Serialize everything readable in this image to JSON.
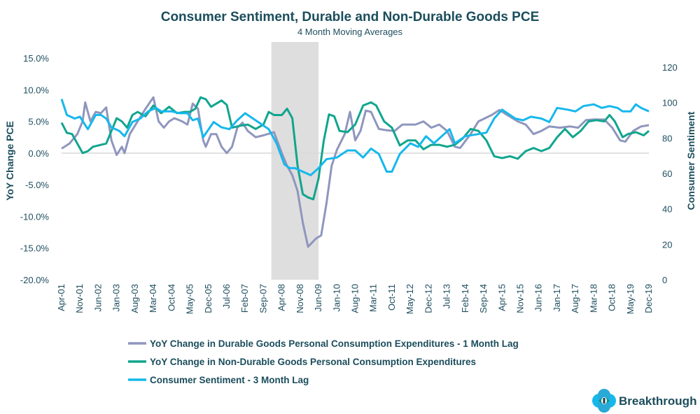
{
  "chart_data": {
    "type": "line",
    "title": "Consumer Sentiment, Durable and Non-Durable Goods PCE",
    "subtitle": "4 Month Moving Averages",
    "ylabel": "YoY Change PCE",
    "y2label": "Consumer Sentiment",
    "ylim": [
      -20,
      15
    ],
    "y2lim": [
      0,
      130
    ],
    "yticks": [
      "15.0%",
      "10.0%",
      "5.0%",
      "0.0%",
      "-5.0%",
      "-10.0%",
      "-15.0%",
      "-20.0%"
    ],
    "y2ticks": [
      "120",
      "100",
      "80",
      "60",
      "40",
      "20",
      "0"
    ],
    "xticks": [
      "Apr-01",
      "Nov-01",
      "Jun-02",
      "Jan-03",
      "Aug-03",
      "Mar-04",
      "Oct-04",
      "May-05",
      "Dec-05",
      "Jul-06",
      "Feb-07",
      "Sep-07",
      "Apr-08",
      "Nov-08",
      "Jun-09",
      "Jan-10",
      "Aug-10",
      "Mar-11",
      "Oct-11",
      "May-12",
      "Dec-12",
      "Jul-13",
      "Feb-14",
      "Sep-14",
      "Apr-15",
      "Nov-15",
      "Jun-16",
      "Jan-17",
      "Aug-17",
      "Mar-18",
      "Oct-18",
      "May-19",
      "Dec-19"
    ],
    "shaded_region": [
      "2007-12",
      "2009-06"
    ],
    "legend_position": "bottom",
    "grid": false,
    "series": [
      {
        "name": "YoY Change in Durable Goods Personal Consumption Expenditures - 1 Month Lag",
        "axis": "left",
        "color": "#8f96bd",
        "points": [
          [
            "2001-04",
            0.7
          ],
          [
            "2001-07",
            1.5
          ],
          [
            "2001-10",
            3
          ],
          [
            "2001-12",
            5
          ],
          [
            "2002-01",
            8
          ],
          [
            "2002-03",
            5
          ],
          [
            "2002-05",
            6.5
          ],
          [
            "2002-07",
            6.3
          ],
          [
            "2002-09",
            7.2
          ],
          [
            "2002-11",
            2
          ],
          [
            "2003-01",
            -0.3
          ],
          [
            "2003-03",
            1
          ],
          [
            "2003-04",
            0
          ],
          [
            "2003-06",
            3
          ],
          [
            "2003-09",
            5
          ],
          [
            "2003-12",
            7
          ],
          [
            "2004-03",
            8.8
          ],
          [
            "2004-05",
            5
          ],
          [
            "2004-07",
            4
          ],
          [
            "2004-09",
            5
          ],
          [
            "2004-11",
            5.5
          ],
          [
            "2005-02",
            5
          ],
          [
            "2005-04",
            4.5
          ],
          [
            "2005-06",
            7.8
          ],
          [
            "2005-08",
            7
          ],
          [
            "2005-10",
            2
          ],
          [
            "2005-11",
            1
          ],
          [
            "2006-01",
            3
          ],
          [
            "2006-03",
            3
          ],
          [
            "2006-05",
            1
          ],
          [
            "2006-07",
            0
          ],
          [
            "2006-09",
            1
          ],
          [
            "2006-11",
            4
          ],
          [
            "2007-01",
            4.8
          ],
          [
            "2007-03",
            3.5
          ],
          [
            "2007-06",
            2.5
          ],
          [
            "2007-09",
            2.8
          ],
          [
            "2008-01",
            3.3
          ],
          [
            "2008-04",
            0
          ],
          [
            "2008-06",
            -2
          ],
          [
            "2008-08",
            -3.5
          ],
          [
            "2008-10",
            -6
          ],
          [
            "2008-12",
            -11
          ],
          [
            "2009-02",
            -14.8
          ],
          [
            "2009-05",
            -13.5
          ],
          [
            "2009-07",
            -13
          ],
          [
            "2009-09",
            -8
          ],
          [
            "2009-11",
            -2
          ],
          [
            "2010-01",
            0.5
          ],
          [
            "2010-04",
            3
          ],
          [
            "2010-06",
            6.5
          ],
          [
            "2010-08",
            2
          ],
          [
            "2010-10",
            3.5
          ],
          [
            "2010-12",
            6.7
          ],
          [
            "2011-02",
            6.5
          ],
          [
            "2011-05",
            3.8
          ],
          [
            "2011-08",
            3.6
          ],
          [
            "2011-11",
            3.5
          ],
          [
            "2012-02",
            4.5
          ],
          [
            "2012-07",
            4.5
          ],
          [
            "2012-10",
            5
          ],
          [
            "2013-01",
            4
          ],
          [
            "2013-04",
            4.5
          ],
          [
            "2013-07",
            3.5
          ],
          [
            "2013-10",
            1
          ],
          [
            "2013-12",
            0.8
          ],
          [
            "2014-04",
            3
          ],
          [
            "2014-07",
            5
          ],
          [
            "2014-12",
            6
          ],
          [
            "2015-03",
            6.8
          ],
          [
            "2015-06",
            6
          ],
          [
            "2015-10",
            5
          ],
          [
            "2016-01",
            4.5
          ],
          [
            "2016-04",
            3
          ],
          [
            "2016-07",
            3.5
          ],
          [
            "2016-10",
            4.2
          ],
          [
            "2017-02",
            4
          ],
          [
            "2017-06",
            4.2
          ],
          [
            "2017-09",
            4
          ],
          [
            "2017-12",
            5.2
          ],
          [
            "2018-03",
            5.3
          ],
          [
            "2018-07",
            5.3
          ],
          [
            "2018-10",
            4
          ],
          [
            "2019-01",
            2
          ],
          [
            "2019-03",
            1.8
          ],
          [
            "2019-06",
            3.5
          ],
          [
            "2019-09",
            4.2
          ],
          [
            "2019-12",
            4.4
          ]
        ]
      },
      {
        "name": "YoY Change in Non-Durable Goods Personal Consumption Expenditures",
        "axis": "left",
        "color": "#10a58e",
        "points": [
          [
            "2001-04",
            4.8
          ],
          [
            "2001-06",
            3.2
          ],
          [
            "2001-08",
            3
          ],
          [
            "2001-10",
            1.5
          ],
          [
            "2001-12",
            0
          ],
          [
            "2002-02",
            0.3
          ],
          [
            "2002-04",
            1
          ],
          [
            "2002-07",
            1.3
          ],
          [
            "2002-09",
            1.5
          ],
          [
            "2002-11",
            3.5
          ],
          [
            "2003-01",
            5.5
          ],
          [
            "2003-03",
            5
          ],
          [
            "2003-05",
            4
          ],
          [
            "2003-07",
            6
          ],
          [
            "2003-09",
            6.5
          ],
          [
            "2003-12",
            5.8
          ],
          [
            "2004-03",
            7.5
          ],
          [
            "2004-06",
            6.3
          ],
          [
            "2004-09",
            7.3
          ],
          [
            "2004-12",
            6.3
          ],
          [
            "2005-03",
            6.5
          ],
          [
            "2005-05",
            6.5
          ],
          [
            "2005-07",
            7
          ],
          [
            "2005-09",
            8.8
          ],
          [
            "2005-11",
            8.5
          ],
          [
            "2006-01",
            7.3
          ],
          [
            "2006-03",
            7.8
          ],
          [
            "2006-05",
            8.3
          ],
          [
            "2006-07",
            7.6
          ],
          [
            "2006-09",
            4
          ],
          [
            "2006-12",
            4.3
          ],
          [
            "2007-03",
            4.5
          ],
          [
            "2007-06",
            3.8
          ],
          [
            "2007-09",
            4.5
          ],
          [
            "2007-11",
            6.5
          ],
          [
            "2008-01",
            6
          ],
          [
            "2008-04",
            6
          ],
          [
            "2008-06",
            7
          ],
          [
            "2008-08",
            5.5
          ],
          [
            "2008-10",
            -2
          ],
          [
            "2008-12",
            -6.5
          ],
          [
            "2009-02",
            -7
          ],
          [
            "2009-04",
            -7.3
          ],
          [
            "2009-06",
            -4
          ],
          [
            "2009-08",
            2
          ],
          [
            "2009-10",
            6.1
          ],
          [
            "2009-12",
            5.8
          ],
          [
            "2010-02",
            3.5
          ],
          [
            "2010-05",
            3.3
          ],
          [
            "2010-08",
            4.5
          ],
          [
            "2010-11",
            7.5
          ],
          [
            "2011-02",
            8
          ],
          [
            "2011-04",
            7.5
          ],
          [
            "2011-07",
            5
          ],
          [
            "2011-10",
            4
          ],
          [
            "2012-01",
            1.2
          ],
          [
            "2012-04",
            2
          ],
          [
            "2012-07",
            2
          ],
          [
            "2012-10",
            0.6
          ],
          [
            "2013-01",
            1.3
          ],
          [
            "2013-04",
            1.3
          ],
          [
            "2013-07",
            1
          ],
          [
            "2013-10",
            1.3
          ],
          [
            "2014-01",
            2.3
          ],
          [
            "2014-04",
            3.8
          ],
          [
            "2014-07",
            3.5
          ],
          [
            "2014-10",
            2
          ],
          [
            "2015-01",
            -0.5
          ],
          [
            "2015-04",
            -0.8
          ],
          [
            "2015-07",
            -0.5
          ],
          [
            "2015-10",
            -0.9
          ],
          [
            "2016-01",
            0.3
          ],
          [
            "2016-04",
            0.8
          ],
          [
            "2016-07",
            0.3
          ],
          [
            "2016-10",
            0.8
          ],
          [
            "2017-01",
            2.5
          ],
          [
            "2017-04",
            3.8
          ],
          [
            "2017-07",
            2.5
          ],
          [
            "2017-10",
            3.5
          ],
          [
            "2018-01",
            5
          ],
          [
            "2018-04",
            5.2
          ],
          [
            "2018-07",
            5
          ],
          [
            "2018-09",
            6
          ],
          [
            "2018-11",
            5
          ],
          [
            "2019-02",
            2.5
          ],
          [
            "2019-04",
            3
          ],
          [
            "2019-07",
            3.3
          ],
          [
            "2019-10",
            2.8
          ],
          [
            "2019-12",
            3.5
          ]
        ]
      },
      {
        "name": "Consumer Sentiment - 3 Month Lag",
        "axis": "right",
        "color": "#16b8ec",
        "points": [
          [
            "2001-04",
            102
          ],
          [
            "2001-06",
            93
          ],
          [
            "2001-09",
            91
          ],
          [
            "2001-11",
            92
          ],
          [
            "2002-02",
            85
          ],
          [
            "2002-05",
            93
          ],
          [
            "2002-07",
            93
          ],
          [
            "2002-09",
            91
          ],
          [
            "2002-11",
            86
          ],
          [
            "2003-02",
            84
          ],
          [
            "2003-04",
            81
          ],
          [
            "2003-07",
            89
          ],
          [
            "2003-10",
            91
          ],
          [
            "2004-01",
            95
          ],
          [
            "2004-04",
            97
          ],
          [
            "2004-06",
            95
          ],
          [
            "2004-10",
            95
          ],
          [
            "2005-01",
            94
          ],
          [
            "2005-04",
            94
          ],
          [
            "2005-06",
            90
          ],
          [
            "2005-08",
            91
          ],
          [
            "2005-10",
            80.5
          ],
          [
            "2006-02",
            89
          ],
          [
            "2006-05",
            86
          ],
          [
            "2006-08",
            85
          ],
          [
            "2006-11",
            90
          ],
          [
            "2007-02",
            94
          ],
          [
            "2007-05",
            91
          ],
          [
            "2007-08",
            88
          ],
          [
            "2007-11",
            85
          ],
          [
            "2008-02",
            77
          ],
          [
            "2008-05",
            65
          ],
          [
            "2008-07",
            63
          ],
          [
            "2008-09",
            63
          ],
          [
            "2008-12",
            61
          ],
          [
            "2009-03",
            59
          ],
          [
            "2009-06",
            63
          ],
          [
            "2009-09",
            68
          ],
          [
            "2010-01",
            69
          ],
          [
            "2010-05",
            73
          ],
          [
            "2010-08",
            73
          ],
          [
            "2010-11",
            69
          ],
          [
            "2011-02",
            74
          ],
          [
            "2011-05",
            71
          ],
          [
            "2011-08",
            61
          ],
          [
            "2011-10",
            61
          ],
          [
            "2012-01",
            71
          ],
          [
            "2012-05",
            77
          ],
          [
            "2012-08",
            75
          ],
          [
            "2012-11",
            81
          ],
          [
            "2013-02",
            77
          ],
          [
            "2013-05",
            81
          ],
          [
            "2013-08",
            85
          ],
          [
            "2013-10",
            77
          ],
          [
            "2014-02",
            81
          ],
          [
            "2014-06",
            82
          ],
          [
            "2014-10",
            83
          ],
          [
            "2015-01",
            91
          ],
          [
            "2015-04",
            96
          ],
          [
            "2015-06",
            94
          ],
          [
            "2015-09",
            91
          ],
          [
            "2015-12",
            90
          ],
          [
            "2016-03",
            92
          ],
          [
            "2016-07",
            91
          ],
          [
            "2016-10",
            89
          ],
          [
            "2017-01",
            97
          ],
          [
            "2017-05",
            96
          ],
          [
            "2017-08",
            95
          ],
          [
            "2017-11",
            98
          ],
          [
            "2018-03",
            99
          ],
          [
            "2018-06",
            97
          ],
          [
            "2018-09",
            98
          ],
          [
            "2018-12",
            97
          ],
          [
            "2019-02",
            95
          ],
          [
            "2019-05",
            95
          ],
          [
            "2019-07",
            99
          ],
          [
            "2019-09",
            97
          ],
          [
            "2019-12",
            95
          ]
        ]
      }
    ]
  },
  "brand": {
    "name": "Breakthrough",
    "colors": {
      "teal": "#1b4d5c",
      "cyan": "#16b8ec",
      "green": "#10a58e"
    }
  }
}
